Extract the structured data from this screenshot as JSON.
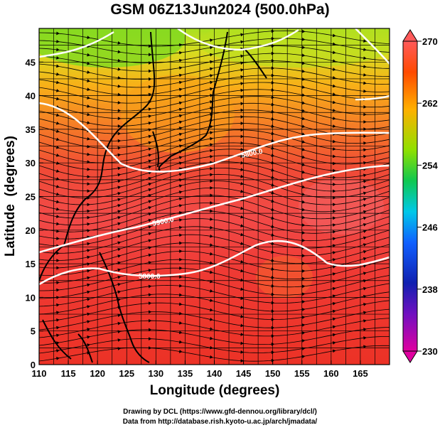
{
  "title": "GSM 06Z13Jun2024 (500.0hPa)",
  "credits": {
    "line1": "Drawing by DCL (https://www.gfd-dennou.org/library/dcl/)",
    "line2": "Data from http://database.rish.kyoto-u.ac.jp/arch/jmadata/"
  },
  "map": {
    "x_label": "Longitude (degrees)",
    "y_label": "Latitude  (degrees)",
    "x_ticks": [
      110,
      115,
      120,
      125,
      130,
      135,
      140,
      145,
      150,
      155,
      160,
      165
    ],
    "y_ticks": [
      0,
      5,
      10,
      15,
      20,
      25,
      30,
      35,
      40,
      45
    ],
    "lon_range": [
      110,
      170
    ],
    "lat_range": [
      0,
      50
    ],
    "grid": true,
    "fill_variable_range": [
      230,
      270
    ],
    "contour_labels": [
      "5800.0",
      "5900.0",
      "5800.0"
    ]
  },
  "colorbar": {
    "labels": [
      "270",
      "262",
      "254",
      "246",
      "238",
      "230"
    ],
    "min": 230,
    "max": 270,
    "colors": [
      "#e0009c",
      "#1010a0",
      "#2060ff",
      "#00c8e8",
      "#20c040",
      "#a8e000",
      "#ffb000",
      "#ff5000",
      "#ff2a2a",
      "#ff6060"
    ]
  }
}
